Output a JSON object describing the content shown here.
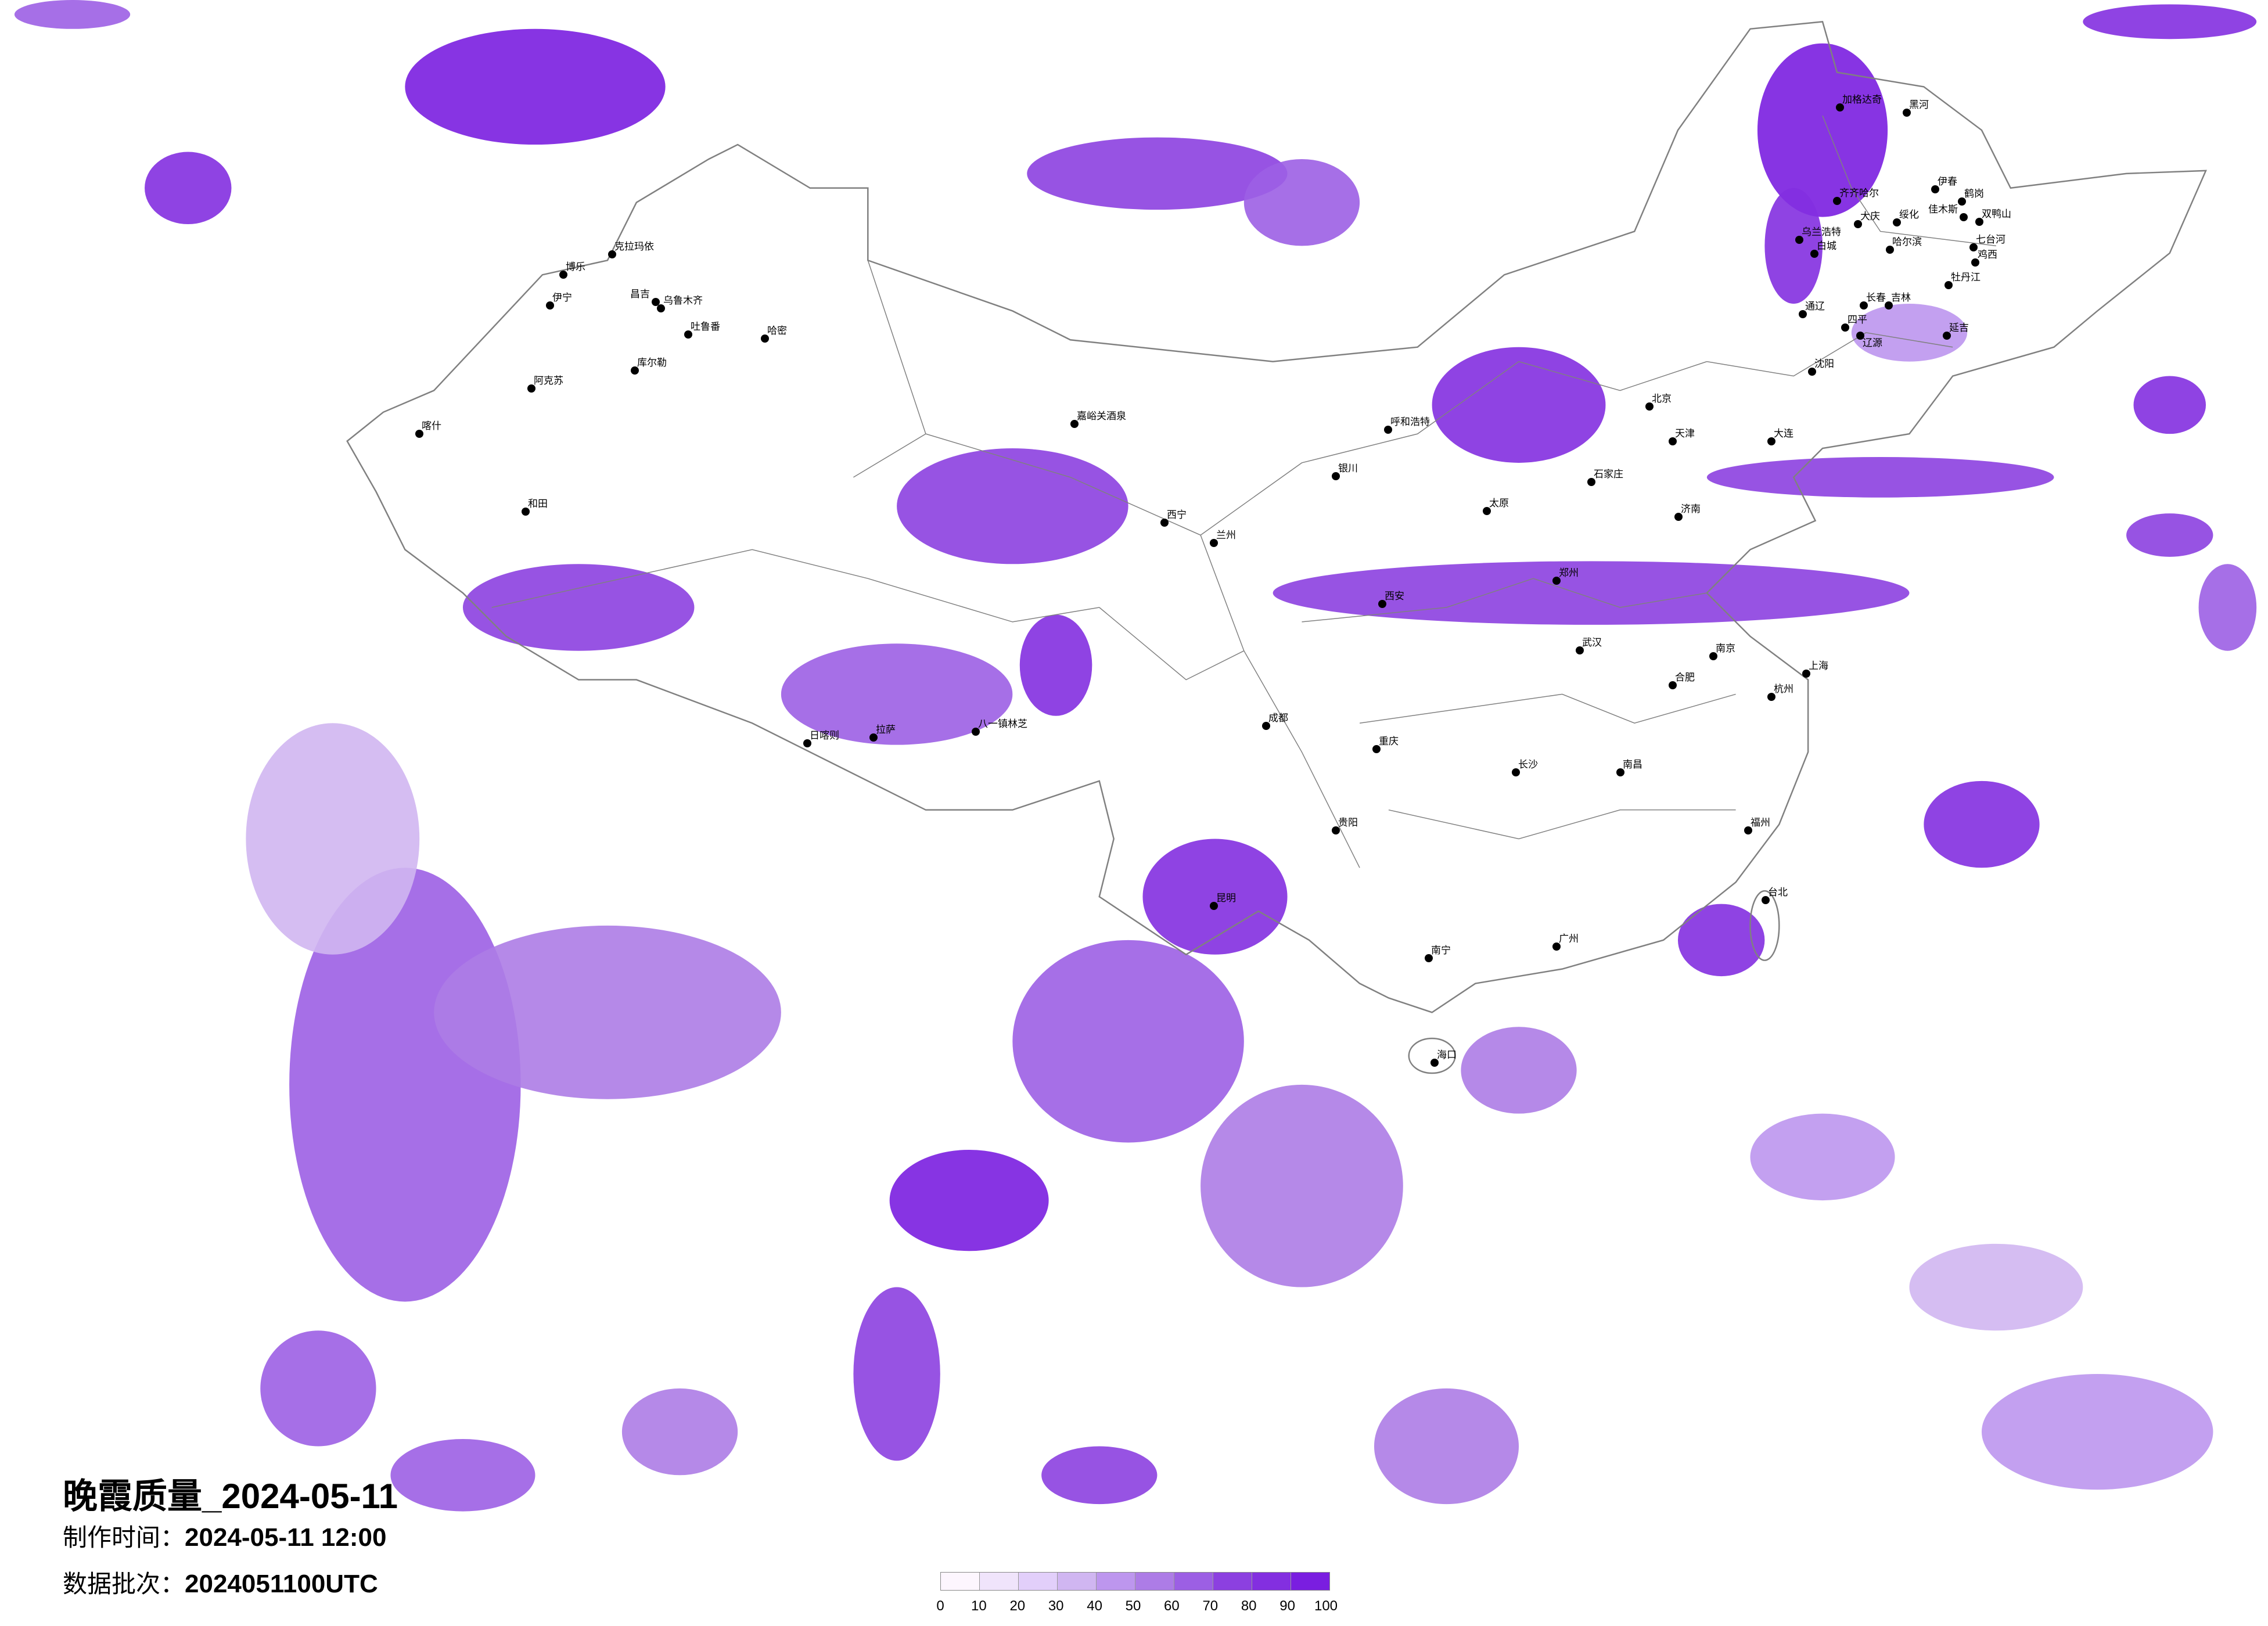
{
  "title": "晚霞质量_2024-05-11",
  "production_time": {
    "label": "制作时间：",
    "value": "2024-05-11 12:00"
  },
  "data_batch": {
    "label": "数据批次：",
    "value": "2024051100UTC"
  },
  "legend": {
    "ticks": [
      "0",
      "10",
      "20",
      "30",
      "40",
      "50",
      "60",
      "70",
      "80",
      "90",
      "100"
    ],
    "colors": [
      "#fdf6fe",
      "#f0e4fb",
      "#e2cffa",
      "#d0b6f1",
      "#bd96ee",
      "#ad7ce6",
      "#9c5fe4",
      "#8c40e0",
      "#832fe0",
      "#7a1ee0"
    ]
  },
  "map": {
    "border_color": "#808080",
    "city_marker_color": "#000000",
    "cities": [
      "克拉玛依",
      "博乐",
      "伊宁",
      "昌吉",
      "乌鲁木齐",
      "吐鲁番",
      "哈密",
      "库尔勒",
      "阿克苏",
      "和田",
      "喀什",
      "嘉峪关酒泉",
      "西宁",
      "兰州",
      "银川",
      "呼和浩特",
      "北京",
      "天津",
      "石家庄",
      "太原",
      "济南",
      "郑州",
      "西安",
      "武汉",
      "长沙",
      "南昌",
      "杭州",
      "上海",
      "南京",
      "合肥",
      "福州",
      "台北",
      "广州",
      "南宁",
      "海口",
      "昆明",
      "贵阳",
      "重庆",
      "成都",
      "拉萨",
      "日喀则",
      "八一镇林芝",
      "加格达奇",
      "黑河",
      "齐齐哈尔",
      "大庆",
      "绥化",
      "哈尔滨",
      "伊春",
      "鹤岗",
      "佳木斯",
      "双鸭山",
      "七台河",
      "鸡西",
      "牡丹江",
      "长春",
      "吉林",
      "延吉",
      "乌兰浩特",
      "白城",
      "通辽",
      "四平",
      "辽源",
      "沈阳",
      "大连"
    ]
  }
}
